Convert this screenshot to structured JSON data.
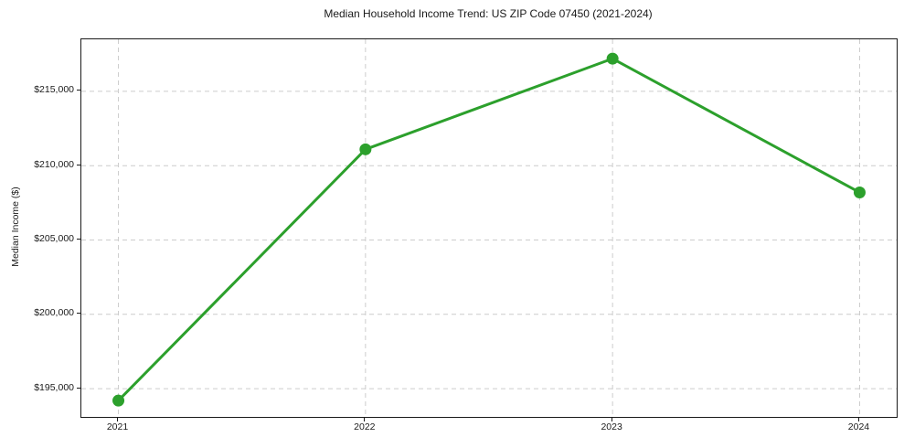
{
  "chart_data": {
    "type": "line",
    "title": "Median Household Income Trend: US ZIP Code 07450 (2021-2024)",
    "xlabel": "",
    "ylabel": "Median Income ($)",
    "x": [
      2021,
      2022,
      2023,
      2024
    ],
    "x_tick_labels": [
      "2021",
      "2022",
      "2023",
      "2024"
    ],
    "series": [
      {
        "name": "Median household income",
        "values": [
          194200,
          211100,
          217200,
          208200
        ]
      }
    ],
    "y_ticks": [
      195000,
      200000,
      205000,
      210000,
      215000
    ],
    "y_tick_labels": [
      "$195,000",
      "$200,000",
      "$205,000",
      "$210,000",
      "$215,000"
    ],
    "xlim": [
      2020.85,
      2024.15
    ],
    "ylim": [
      193100,
      218500
    ],
    "grid": true,
    "grid_style": "dashed",
    "legend_position": "none",
    "line_color": "#2ca02c",
    "marker": "circle",
    "grid_color": "#cccccc",
    "axis_color": "#1a1a1a",
    "text_color": "#1a1a1a",
    "background_color": "#ffffff"
  }
}
